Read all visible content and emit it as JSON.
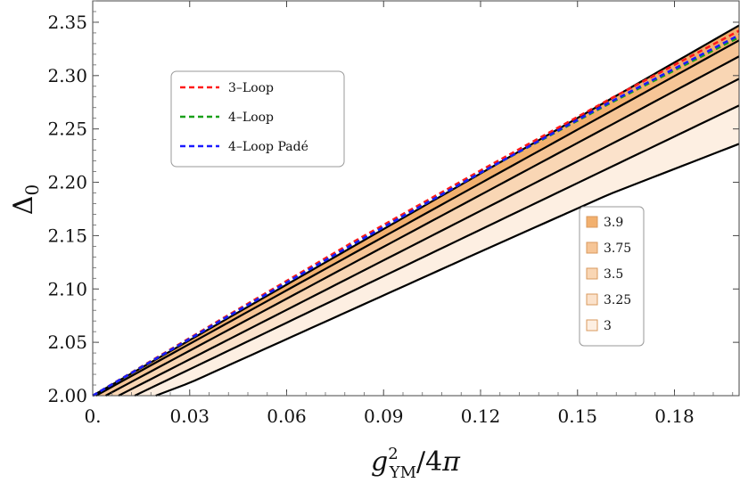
{
  "chart_data": {
    "type": "area",
    "xlabel": "g²YM/4π",
    "ylabel": "Δ0",
    "xlim": [
      0,
      0.2
    ],
    "ylim": [
      2.0,
      2.37
    ],
    "xticks": [
      {
        "value": 0,
        "label": "0."
      },
      {
        "value": 0.03,
        "label": "0.03"
      },
      {
        "value": 0.06,
        "label": "0.06"
      },
      {
        "value": 0.09,
        "label": "0.09"
      },
      {
        "value": 0.12,
        "label": "0.12"
      },
      {
        "value": 0.15,
        "label": "0.15"
      },
      {
        "value": 0.18,
        "label": "0.18"
      }
    ],
    "yticks": [
      {
        "value": 2.0,
        "label": "2.00"
      },
      {
        "value": 2.05,
        "label": "2.05"
      },
      {
        "value": 2.1,
        "label": "2.10"
      },
      {
        "value": 2.15,
        "label": "2.15"
      },
      {
        "value": 2.2,
        "label": "2.20"
      },
      {
        "value": 2.25,
        "label": "2.25"
      },
      {
        "value": 2.3,
        "label": "2.30"
      },
      {
        "value": 2.35,
        "label": "2.35"
      }
    ],
    "bounds": [
      {
        "x": [
          0,
          0.2
        ],
        "y": [
          2.0,
          2.347
        ]
      },
      {
        "x": [
          0.001,
          0.2
        ],
        "y": [
          2.0,
          2.333
        ]
      },
      {
        "x": [
          0.004,
          0.2
        ],
        "y": [
          2.0,
          2.318
        ]
      },
      {
        "x": [
          0.008,
          0.2
        ],
        "y": [
          2.0,
          2.297
        ]
      },
      {
        "x": [
          0.013,
          0.2
        ],
        "y": [
          2.0,
          2.272
        ]
      },
      {
        "x": [
          0.0195,
          0.03,
          0.06,
          0.09,
          0.12,
          0.16,
          0.2
        ],
        "y": [
          2.0,
          2.012,
          2.053,
          2.094,
          2.135,
          2.189,
          2.236
        ]
      }
    ],
    "bands": [
      {
        "name": "3.9",
        "color": "#f2b06e"
      },
      {
        "name": "3.75",
        "color": "#f6c596"
      },
      {
        "name": "3.5",
        "color": "#f9d6b4"
      },
      {
        "name": "3.25",
        "color": "#fbe2cb"
      },
      {
        "name": "3",
        "color": "#fdefe2"
      }
    ],
    "series": [
      {
        "name": "3–Loop",
        "color": "#ff1a1a",
        "x": [
          0,
          0.04,
          0.08,
          0.12,
          0.16,
          0.2
        ],
        "y": [
          2.0,
          2.072,
          2.143,
          2.211,
          2.278,
          2.342
        ]
      },
      {
        "name": "4–Loop",
        "color": "#1aa01a",
        "x": [
          0,
          0.04,
          0.08,
          0.12,
          0.16,
          0.2
        ],
        "y": [
          2.0,
          2.071,
          2.141,
          2.209,
          2.274,
          2.336
        ]
      },
      {
        "name": "4–Loop Padé",
        "color": "#1a1aff",
        "x": [
          0,
          0.04,
          0.08,
          0.12,
          0.16,
          0.2
        ],
        "y": [
          2.0,
          2.071,
          2.141,
          2.209,
          2.275,
          2.338
        ]
      }
    ],
    "legend_lines_position": "top-left",
    "legend_bands_position": "center-right",
    "grid": false
  }
}
